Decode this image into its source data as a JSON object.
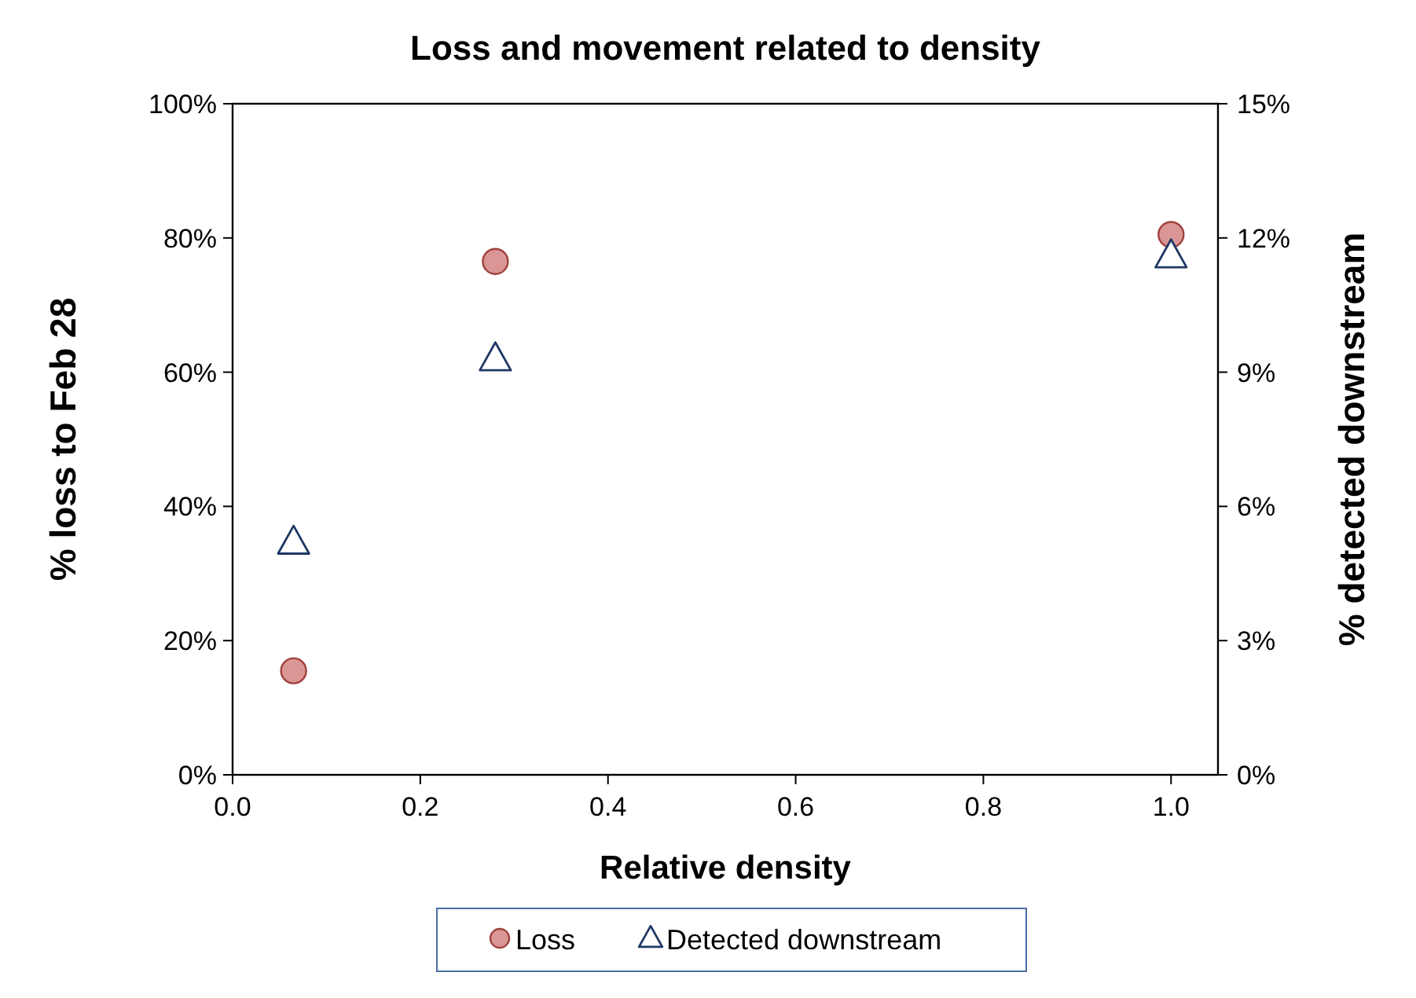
{
  "chart_data": {
    "type": "scatter",
    "title": "Loss and movement related to density",
    "xlabel": "Relative density",
    "ylabel": "% loss to Feb 28",
    "y2label": "% detected downstream",
    "xlim": [
      0,
      1.05
    ],
    "xticks": [
      {
        "value": 0,
        "label": "0.0"
      },
      {
        "value": 0.2,
        "label": "0.2"
      },
      {
        "value": 0.4,
        "label": "0.4"
      },
      {
        "value": 0.6,
        "label": "0.6"
      },
      {
        "value": 0.8,
        "label": "0.8"
      },
      {
        "value": 1,
        "label": "1.0"
      }
    ],
    "ylim": [
      0,
      100
    ],
    "yticks": [
      {
        "value": 0,
        "label": "0%"
      },
      {
        "value": 20,
        "label": "20%"
      },
      {
        "value": 40,
        "label": "40%"
      },
      {
        "value": 60,
        "label": "60%"
      },
      {
        "value": 80,
        "label": "80%"
      },
      {
        "value": 100,
        "label": "100%"
      }
    ],
    "y2lim": [
      0,
      15
    ],
    "y2ticks": [
      {
        "value": 0,
        "label": "0%"
      },
      {
        "value": 3,
        "label": "3%"
      },
      {
        "value": 6,
        "label": "6%"
      },
      {
        "value": 9,
        "label": "9%"
      },
      {
        "value": 12,
        "label": "12%"
      },
      {
        "value": 15,
        "label": "15%"
      }
    ],
    "x": [
      0.065,
      0.28,
      1.0
    ],
    "series": [
      {
        "name": "Loss",
        "color": "#d99694",
        "marker": "circle",
        "values": [
          15.5,
          76.5,
          80.5
        ]
      },
      {
        "name": "Detected downstream",
        "color": "#1f3864",
        "marker": "triangle",
        "axis": "y2",
        "values": [
          5.2,
          9.3,
          11.6
        ]
      }
    ],
    "legend": "bottom",
    "grid": false
  }
}
